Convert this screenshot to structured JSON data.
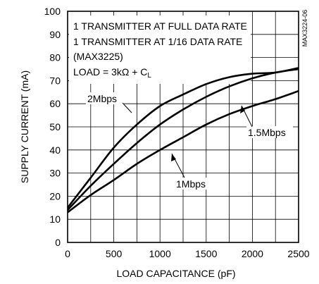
{
  "chart_data": {
    "type": "line",
    "xlabel": "LOAD CAPACITANCE (pF)",
    "ylabel": "SUPPLY CURRENT (mA)",
    "xlim": [
      0,
      2500
    ],
    "ylim": [
      0,
      100
    ],
    "x_ticks": [
      0,
      500,
      1000,
      1500,
      2000,
      2500
    ],
    "y_ticks": [
      0,
      10,
      20,
      30,
      40,
      50,
      60,
      70,
      80,
      90,
      100
    ],
    "grid": true,
    "legend_lines": [
      "1 TRANSMITTER AT FULL DATA RATE",
      "1 TRANSMITTER AT 1/16 DATA RATE",
      "(MAX3225)"
    ],
    "load_prefix": "LOAD = 3k",
    "load_omega": "Ω",
    "load_mid": " + C",
    "load_sub": "L",
    "part_code": "MAX3224-06",
    "series": [
      {
        "name": "2Mbps",
        "x": [
          0,
          250,
          500,
          750,
          1000,
          1250,
          1500,
          1750,
          2000,
          2250,
          2500
        ],
        "y": [
          15,
          28,
          41,
          51,
          59,
          64,
          68.5,
          71.5,
          73,
          73.5,
          75.5
        ]
      },
      {
        "name": "1.5Mbps",
        "x": [
          0,
          250,
          500,
          750,
          1000,
          1250,
          1500,
          1750,
          2000,
          2250,
          2500
        ],
        "y": [
          14,
          24.5,
          34,
          43,
          51,
          57.5,
          63,
          67.5,
          71,
          73.5,
          75
        ]
      },
      {
        "name": "1Mbps",
        "x": [
          0,
          250,
          500,
          750,
          1000,
          1250,
          1500,
          1750,
          2000,
          2250,
          2500
        ],
        "y": [
          13,
          20.5,
          27,
          34,
          40,
          45.5,
          51,
          55.5,
          59,
          62,
          65.5
        ]
      }
    ]
  }
}
